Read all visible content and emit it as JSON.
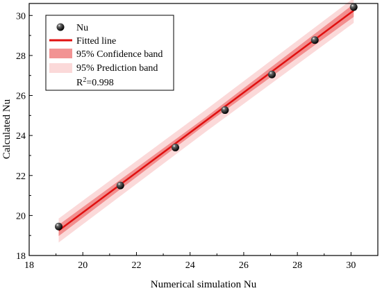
{
  "chart_data": {
    "type": "scatter",
    "xlabel": "Numerical simulation Nu",
    "ylabel": "Calculated Nu",
    "xlim": [
      18,
      31
    ],
    "ylim": [
      18,
      30.6
    ],
    "xticks": [
      18,
      20,
      22,
      24,
      26,
      28,
      30
    ],
    "yticks": [
      18,
      20,
      22,
      24,
      26,
      28,
      30
    ],
    "xtick_labels": [
      "18",
      "20",
      "22",
      "24",
      "26",
      "28",
      "30"
    ],
    "ytick_labels": [
      "18",
      "20",
      "22",
      "24",
      "26",
      "28",
      "30"
    ],
    "grid": false,
    "legend_position": "top-left",
    "series": [
      {
        "name": "Nu",
        "kind": "scatter",
        "x": [
          19.1,
          21.4,
          23.45,
          25.3,
          27.05,
          28.65,
          30.1
        ],
        "y": [
          19.45,
          21.5,
          23.4,
          25.27,
          27.05,
          28.77,
          30.42
        ],
        "color": "#111111"
      }
    ],
    "fit": {
      "name": "Fitted line",
      "x": [
        19.1,
        30.1
      ],
      "y": [
        19.25,
        30.25
      ],
      "color": "#e01010"
    },
    "confidence_band": {
      "name": "95% Confidence band",
      "halfwidth": [
        0.28,
        0.18,
        0.32
      ],
      "color": "#f08080"
    },
    "prediction_band": {
      "name": "95% Prediction band",
      "halfwidth": [
        0.6,
        0.55,
        0.62
      ],
      "color": "#fbd9d9"
    },
    "annotation": {
      "prefix": "R",
      "sup": "2",
      "suffix": "=0.998"
    },
    "legend": [
      "Nu",
      "Fitted line",
      "95% Confidence band",
      "95% Prediction band"
    ]
  }
}
